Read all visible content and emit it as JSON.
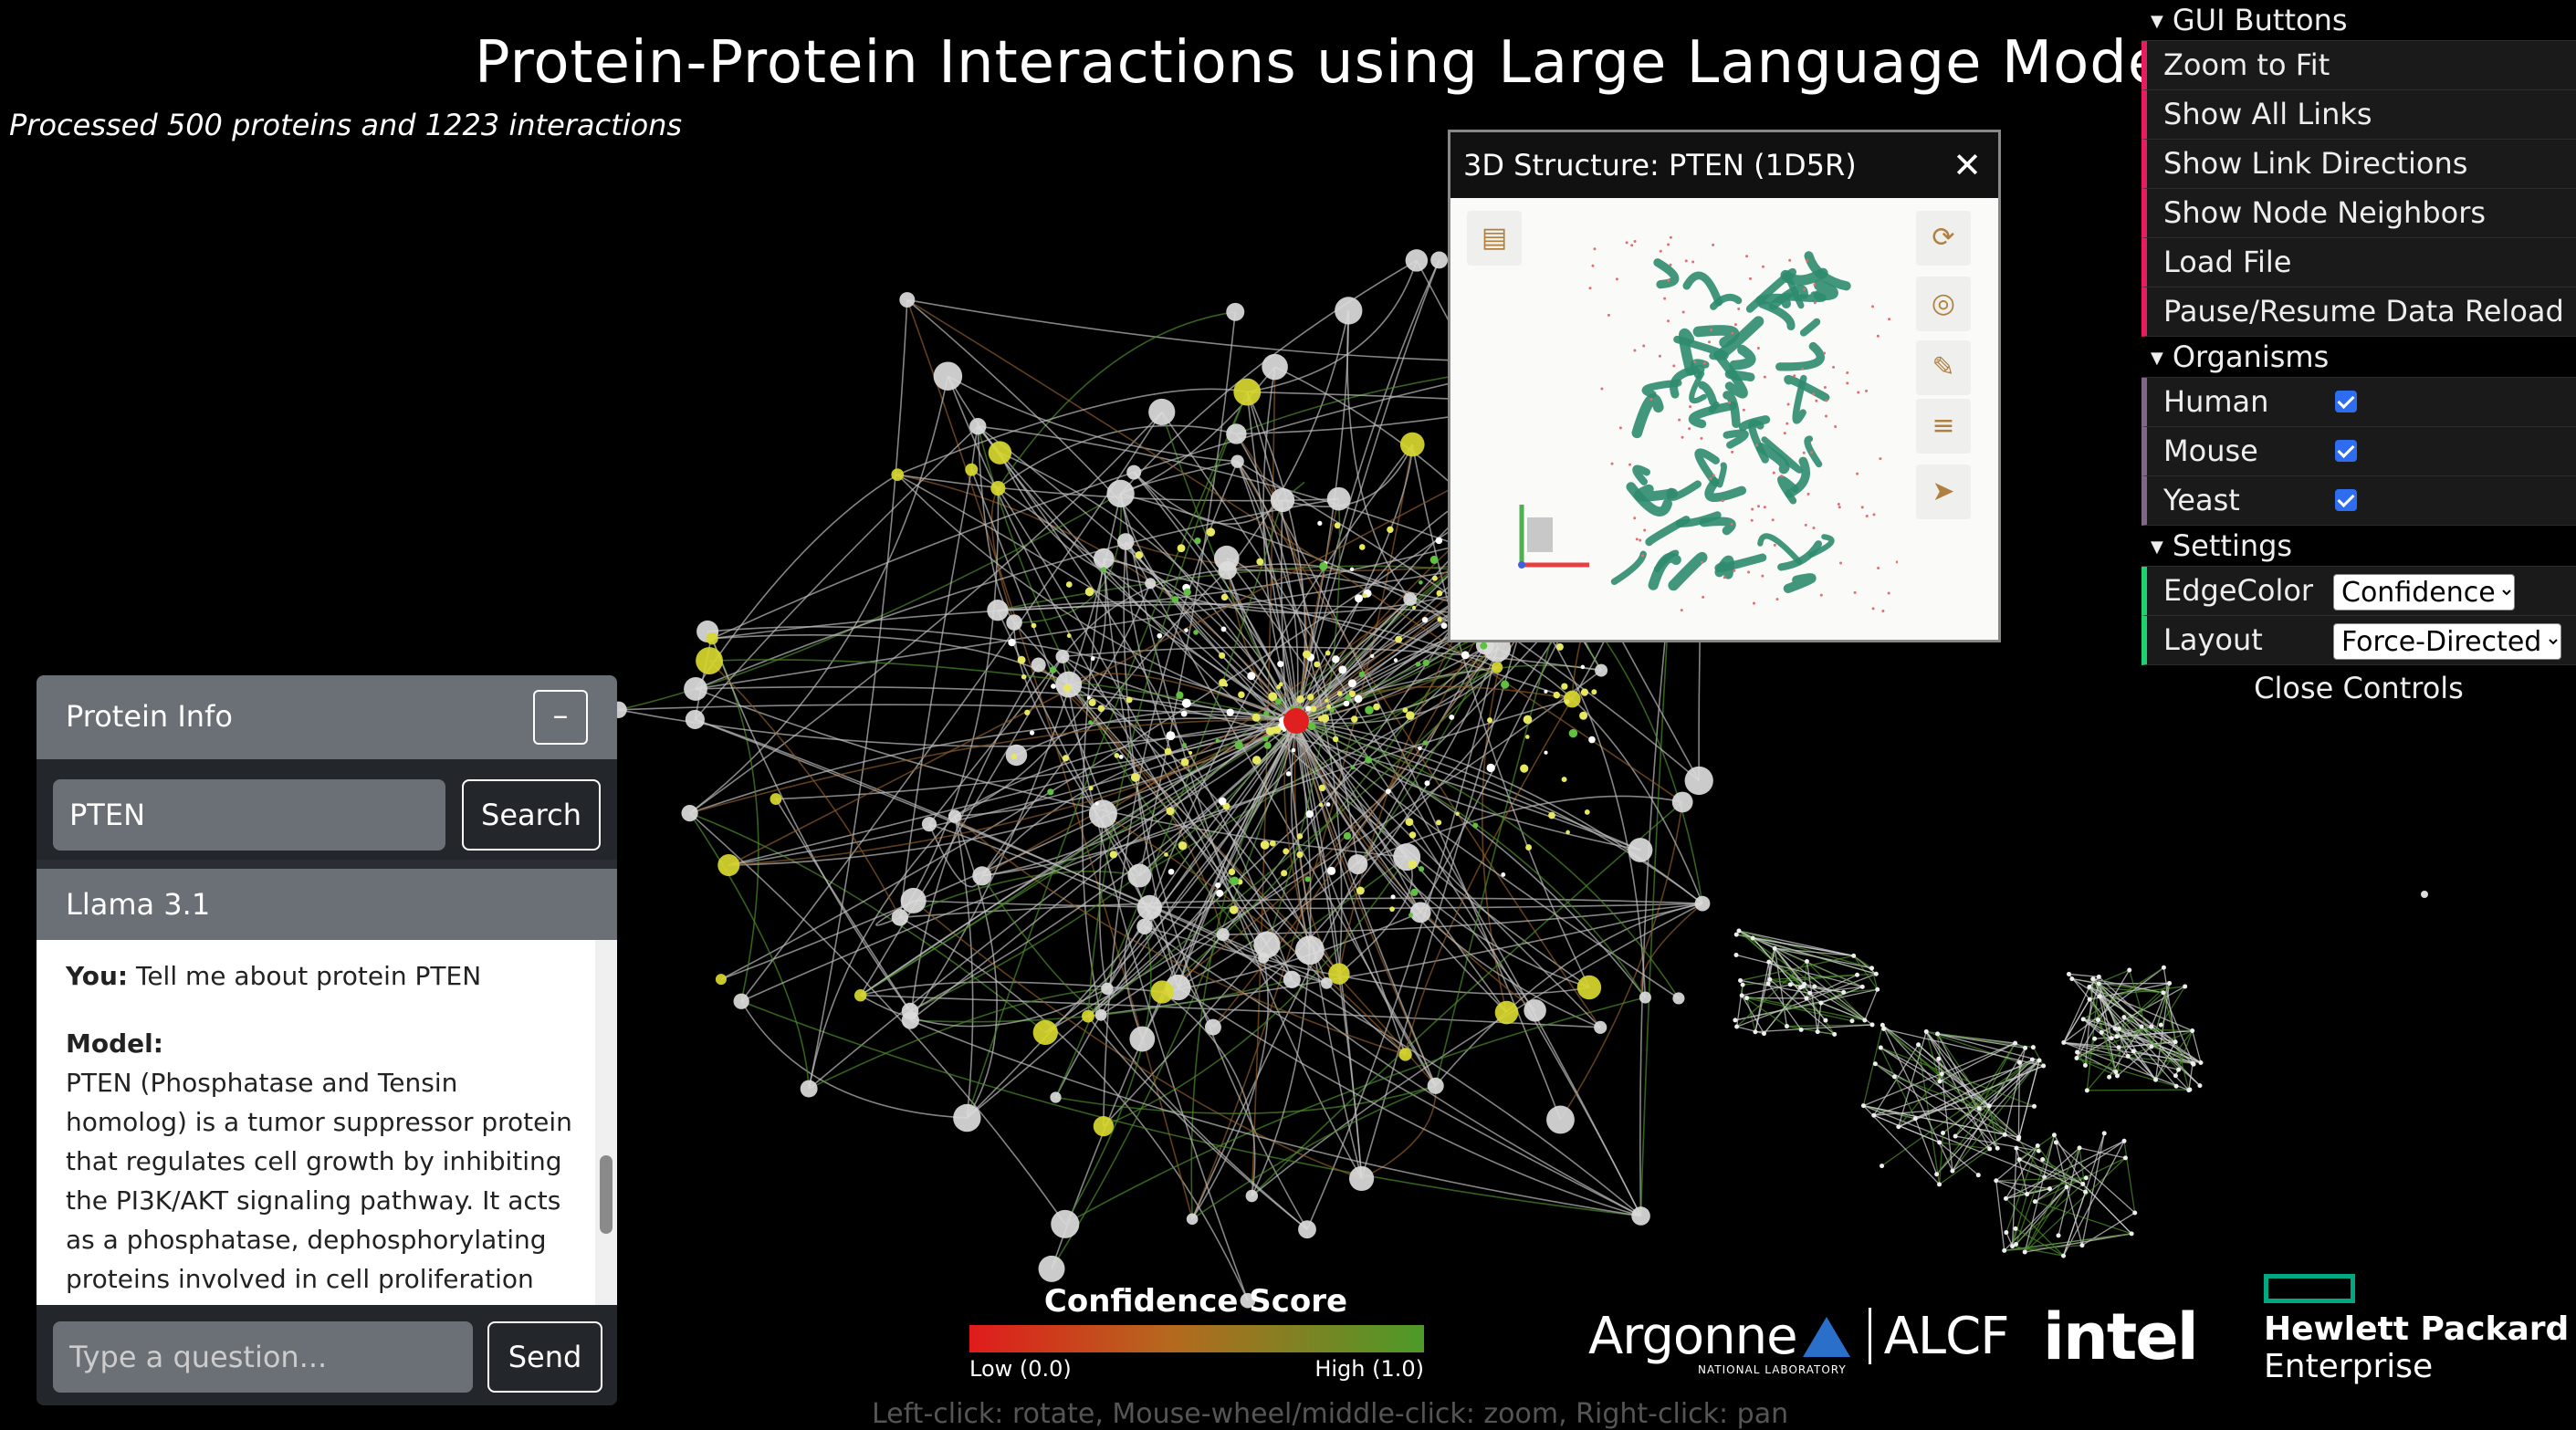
{
  "header": {
    "title": "Protein-Protein Interactions using Large Language Models",
    "subtitle": "Processed 500 proteins and 1223 interactions"
  },
  "footer_hint": "Left-click: rotate, Mouse-wheel/middle-click: zoom, Right-click: pan",
  "gui": {
    "folders": {
      "buttons": "GUI Buttons",
      "organisms": "Organisms",
      "settings": "Settings"
    },
    "buttons": [
      "Zoom to Fit",
      "Show All Links",
      "Show Link Directions",
      "Show Node Neighbors",
      "Load File",
      "Pause/Resume Data Reload"
    ],
    "organisms": [
      {
        "label": "Human",
        "checked": true
      },
      {
        "label": "Mouse",
        "checked": true
      },
      {
        "label": "Yeast",
        "checked": true
      }
    ],
    "settings": {
      "edge_color_label": "EdgeColor",
      "edge_color_value": "Confidence",
      "layout_label": "Layout",
      "layout_value": "Force-Directed"
    },
    "close_label": "Close Controls",
    "colors": {
      "button_accent": "#e61d5f",
      "bool_accent": "#806787",
      "select_accent": "#1ed36f"
    }
  },
  "structure_panel": {
    "title": "3D Structure: PTEN (1D5R)",
    "close_icon": "close-icon",
    "ribbon_color": "#2e8b6e"
  },
  "protein_info": {
    "title": "Protein Info",
    "minimize_icon": "minimize-icon",
    "search_value": "PTEN",
    "search_button": "Search",
    "model_name": "Llama 3.1",
    "chat": {
      "user_label": "You:",
      "user_text": "Tell me about protein PTEN",
      "model_label": "Model:",
      "model_text": "PTEN (Phosphatase and Tensin homolog) is a tumor suppressor protein that regulates cell growth by inhibiting the PI3K/AKT signaling pathway. It acts as a phosphatase, dephosphorylating proteins involved in cell proliferation and"
    },
    "question_placeholder": "Type a question...",
    "send_button": "Send"
  },
  "legend": {
    "title": "Confidence Score",
    "low_label": "Low (0.0)",
    "high_label": "High (1.0)",
    "low_color": "#e01b1b",
    "high_color": "#4c9a28"
  },
  "logos": {
    "argonne": "Argonne",
    "argonne_sub": "NATIONAL LABORATORY",
    "alcf": "ALCF",
    "intel": "intel",
    "hpe_line1": "Hewlett Packard",
    "hpe_line2": "Enterprise"
  },
  "graph": {
    "highlight_node_color": "#e02020",
    "neighbor_node_color": "#d8d830",
    "node_color": "#e8e8e8"
  }
}
